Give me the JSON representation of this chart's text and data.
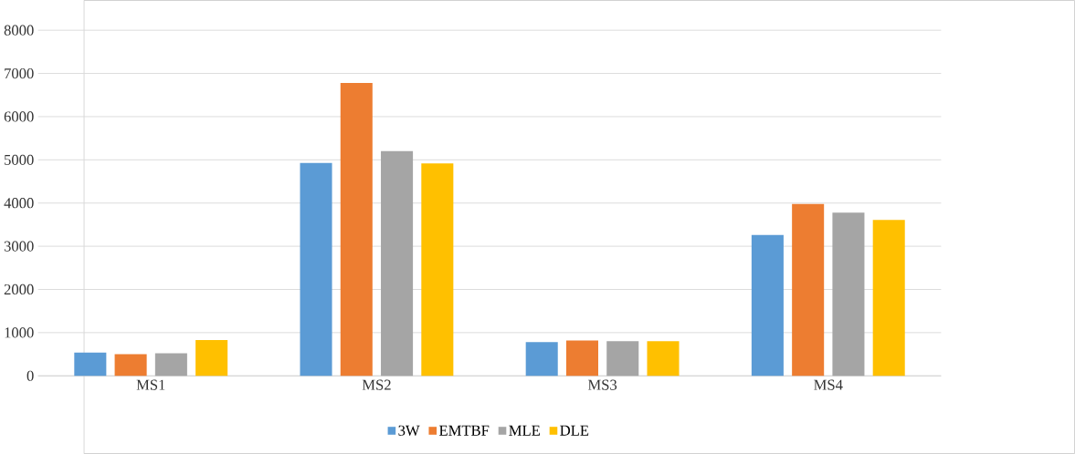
{
  "chart_data": {
    "type": "bar",
    "categories": [
      "MS1",
      "MS2",
      "MS3",
      "MS4"
    ],
    "series": [
      {
        "name": "3W",
        "color": "#5b9bd5",
        "values": [
          540,
          4930,
          780,
          3260
        ]
      },
      {
        "name": "EMTBF",
        "color": "#ed7d31",
        "values": [
          500,
          6780,
          820,
          3980
        ]
      },
      {
        "name": "MLE",
        "color": "#a5a5a5",
        "values": [
          520,
          5200,
          800,
          3780
        ]
      },
      {
        "name": "DLE",
        "color": "#ffc000",
        "values": [
          830,
          4920,
          800,
          3610
        ]
      }
    ],
    "ylim": [
      0,
      8000
    ],
    "yticks": [
      0,
      1000,
      2000,
      3000,
      4000,
      5000,
      6000,
      7000,
      8000
    ],
    "grid": "y",
    "legend": "bottom"
  }
}
